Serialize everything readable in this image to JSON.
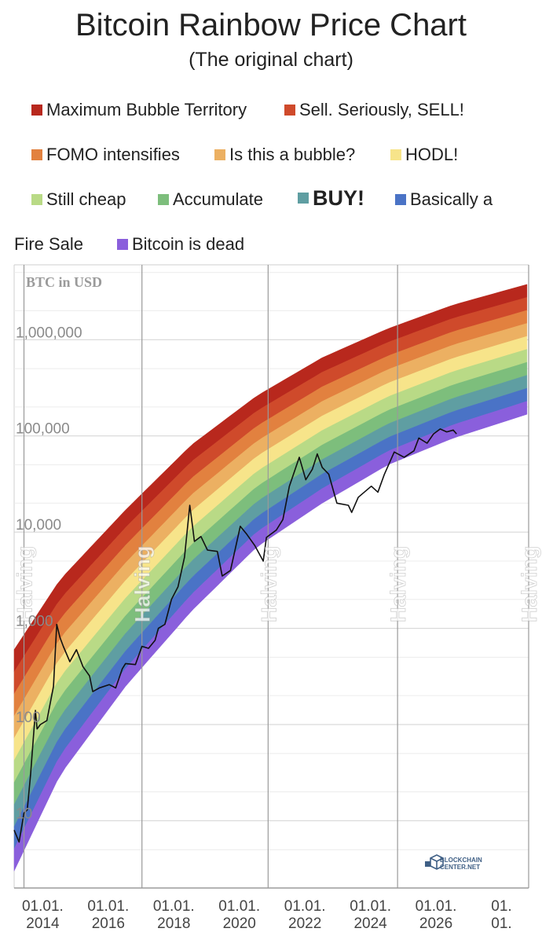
{
  "title": "Bitcoin Rainbow Price Chart",
  "subtitle": "(The original chart)",
  "legend": [
    {
      "label": "Maximum Bubble Territory",
      "color": "#b8281d"
    },
    {
      "label": "Sell. Seriously, SELL!",
      "color": "#cf4a2b"
    },
    {
      "label": "FOMO intensifies",
      "color": "#e2813f"
    },
    {
      "label": "Is this a bubble?",
      "color": "#ecb062"
    },
    {
      "label": "HODL!",
      "color": "#f7e48a"
    },
    {
      "label": "Still cheap",
      "color": "#b9da86"
    },
    {
      "label": "Accumulate",
      "color": "#7dbe7c"
    },
    {
      "label": "BUY!",
      "color": "#5f9ea2"
    },
    {
      "label": "Basically a",
      "color": "#4a73c6"
    },
    {
      "label": "Bitcoin is dead",
      "color": "#8a5fdc"
    }
  ],
  "legend_wrap_text": "Fire Sale",
  "logo": {
    "line1": "BLOCKCHAIN",
    "line2": "CENTER.NET"
  },
  "chart_data": {
    "type": "line",
    "ylabel": "BTC in USD",
    "yscale": "log",
    "ylim": [
      2,
      6000000
    ],
    "xlim": [
      2012.6,
      2028.3
    ],
    "y_ticks": [
      {
        "value": 10,
        "label": "10"
      },
      {
        "value": 100,
        "label": "100"
      },
      {
        "value": 1000,
        "label": "1,000"
      },
      {
        "value": 10000,
        "label": "10,000"
      },
      {
        "value": 100000,
        "label": "100,000"
      },
      {
        "value": 1000000,
        "label": "1,000,000"
      }
    ],
    "x_ticks": [
      {
        "value": 2014,
        "line1": "01.01.",
        "line2": "2014"
      },
      {
        "value": 2016,
        "line1": "01.01.",
        "line2": "2016"
      },
      {
        "value": 2018,
        "line1": "01.01.",
        "line2": "2018"
      },
      {
        "value": 2020,
        "line1": "01.01.",
        "line2": "2020"
      },
      {
        "value": 2022,
        "line1": "01.01.",
        "line2": "2022"
      },
      {
        "value": 2024,
        "line1": "01.01.",
        "line2": "2024"
      },
      {
        "value": 2026,
        "line1": "01.01.",
        "line2": "2026"
      },
      {
        "value": 2028,
        "line1": "01.",
        "line2": "01."
      }
    ],
    "halvings": [
      {
        "x": 2012.9,
        "label": "Halving"
      },
      {
        "x": 2016.5,
        "label": "Halving"
      },
      {
        "x": 2020.35,
        "label": "Halving"
      },
      {
        "x": 2024.3,
        "label": "Halving"
      },
      {
        "x": 2028.3,
        "label": "Halving"
      }
    ],
    "bands": {
      "count": 10,
      "upper_edge": [
        [
          2012.6,
          600
        ],
        [
          2014,
          3200
        ],
        [
          2016,
          17000
        ],
        [
          2018,
          80000
        ],
        [
          2020,
          260000
        ],
        [
          2022,
          650000
        ],
        [
          2024,
          1300000
        ],
        [
          2026,
          2300000
        ],
        [
          2028.3,
          3800000
        ]
      ],
      "lower_edge": [
        [
          2012.6,
          3
        ],
        [
          2014,
          30
        ],
        [
          2016,
          250
        ],
        [
          2018,
          1500
        ],
        [
          2020,
          7000
        ],
        [
          2022,
          20000
        ],
        [
          2024,
          50000
        ],
        [
          2026,
          95000
        ],
        [
          2028.3,
          170000
        ]
      ]
    },
    "series": [
      {
        "values": [
          [
            2012.6,
            8
          ],
          [
            2012.75,
            6
          ],
          [
            2012.9,
            12
          ],
          [
            2013.0,
            13
          ],
          [
            2013.1,
            30
          ],
          [
            2013.25,
            140
          ],
          [
            2013.3,
            90
          ],
          [
            2013.4,
            100
          ],
          [
            2013.6,
            110
          ],
          [
            2013.8,
            250
          ],
          [
            2013.9,
            1100
          ],
          [
            2014.0,
            800
          ],
          [
            2014.1,
            650
          ],
          [
            2014.3,
            450
          ],
          [
            2014.5,
            600
          ],
          [
            2014.7,
            400
          ],
          [
            2014.9,
            320
          ],
          [
            2015.0,
            220
          ],
          [
            2015.2,
            240
          ],
          [
            2015.5,
            260
          ],
          [
            2015.7,
            240
          ],
          [
            2015.9,
            380
          ],
          [
            2016.0,
            430
          ],
          [
            2016.3,
            420
          ],
          [
            2016.5,
            650
          ],
          [
            2016.7,
            620
          ],
          [
            2016.9,
            750
          ],
          [
            2017.0,
            1000
          ],
          [
            2017.2,
            1100
          ],
          [
            2017.4,
            2000
          ],
          [
            2017.6,
            2700
          ],
          [
            2017.8,
            5500
          ],
          [
            2017.96,
            19000
          ],
          [
            2018.05,
            11000
          ],
          [
            2018.1,
            8000
          ],
          [
            2018.3,
            9000
          ],
          [
            2018.5,
            6500
          ],
          [
            2018.8,
            6300
          ],
          [
            2018.95,
            3500
          ],
          [
            2019.2,
            4000
          ],
          [
            2019.5,
            11500
          ],
          [
            2019.7,
            9500
          ],
          [
            2019.95,
            7200
          ],
          [
            2020.2,
            5000
          ],
          [
            2020.3,
            8800
          ],
          [
            2020.6,
            10500
          ],
          [
            2020.8,
            13500
          ],
          [
            2021.0,
            30000
          ],
          [
            2021.3,
            60000
          ],
          [
            2021.5,
            35000
          ],
          [
            2021.7,
            45000
          ],
          [
            2021.85,
            65000
          ],
          [
            2022.0,
            47000
          ],
          [
            2022.2,
            40000
          ],
          [
            2022.45,
            20000
          ],
          [
            2022.8,
            19000
          ],
          [
            2022.9,
            16000
          ],
          [
            2023.1,
            23000
          ],
          [
            2023.5,
            30000
          ],
          [
            2023.7,
            26000
          ],
          [
            2023.9,
            40000
          ],
          [
            2024.2,
            68000
          ],
          [
            2024.5,
            60000
          ],
          [
            2024.8,
            70000
          ],
          [
            2024.95,
            95000
          ],
          [
            2025.2,
            84000
          ],
          [
            2025.4,
            105000
          ],
          [
            2025.6,
            118000
          ],
          [
            2025.8,
            110000
          ],
          [
            2026.0,
            115000
          ],
          [
            2026.1,
            105000
          ]
        ]
      }
    ]
  }
}
